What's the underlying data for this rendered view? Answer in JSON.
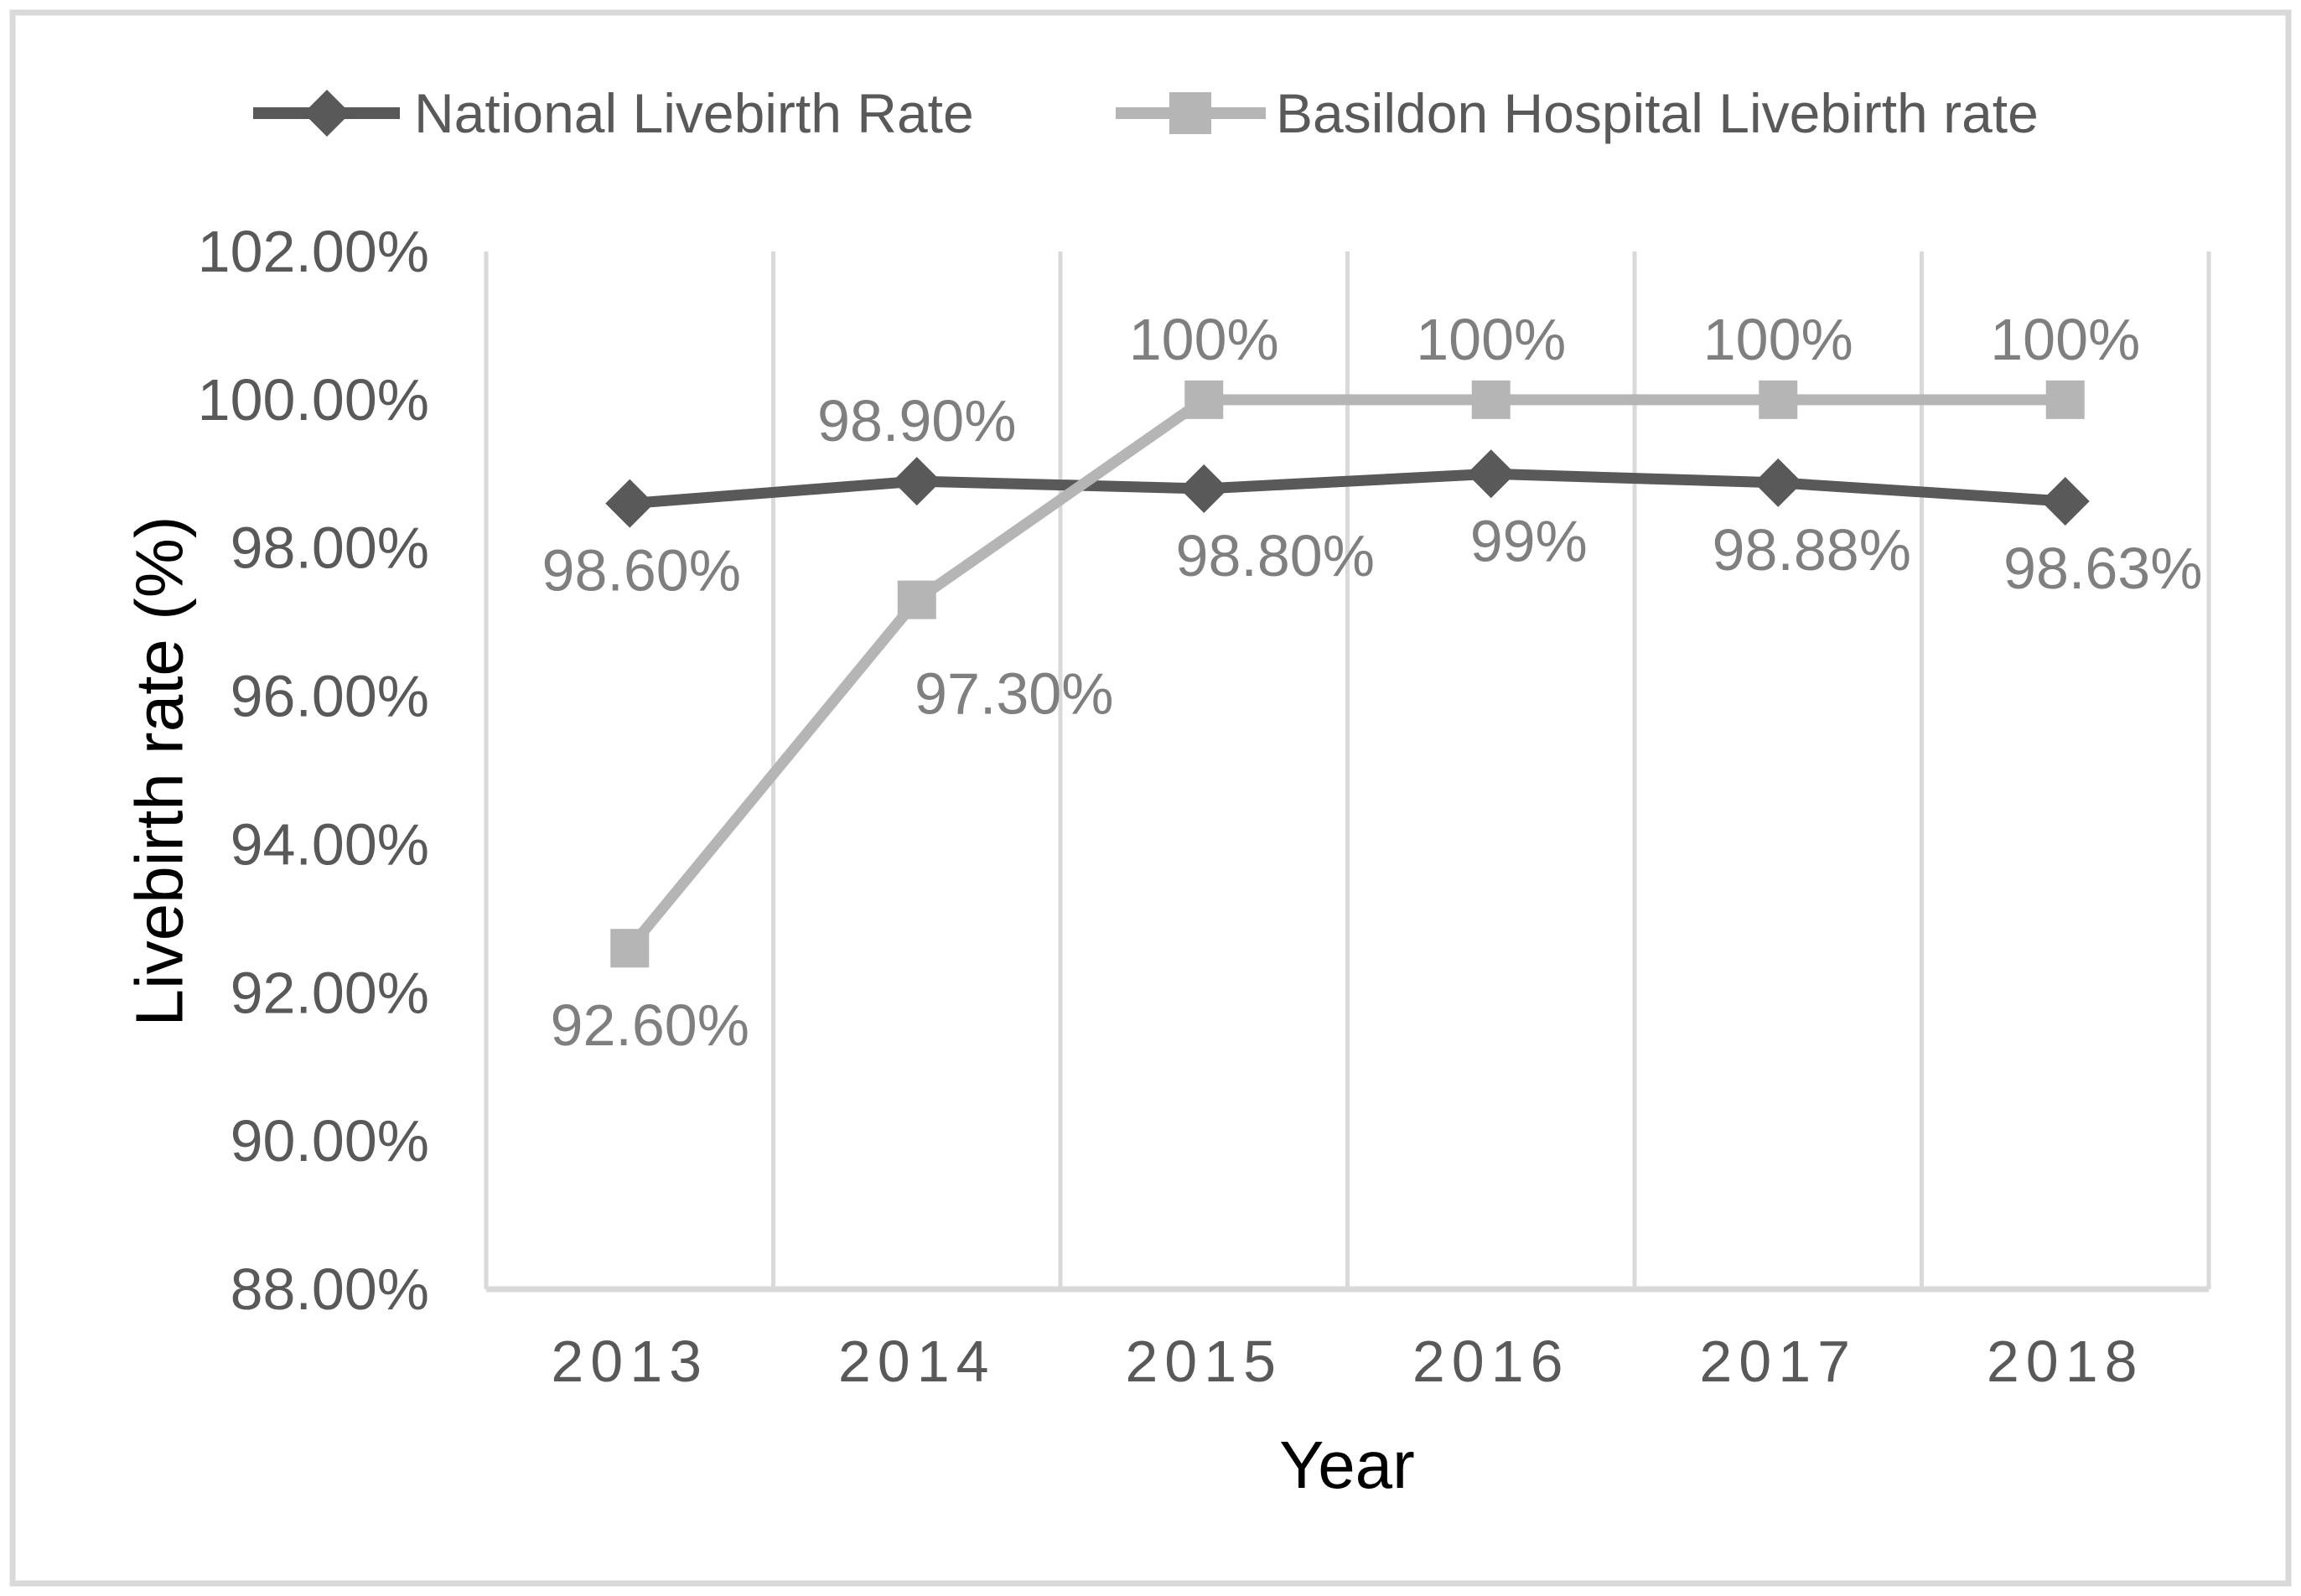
{
  "figure": {
    "y_axis_title": "Livebirth rate (%)",
    "x_axis_title": "Year"
  },
  "legend": {
    "position": "top",
    "items": [
      {
        "label": "National Livebirth Rate",
        "marker": "diamond",
        "color": "#595959"
      },
      {
        "label": "Basildon Hospital Livebirth rate",
        "marker": "square",
        "color": "#b5b5b5"
      }
    ]
  },
  "chart_data": {
    "type": "line",
    "title": "",
    "xlabel": "Year",
    "ylabel": "Livebirth rate (%)",
    "categories": [
      "2013",
      "2014",
      "2015",
      "2016",
      "2017",
      "2018"
    ],
    "series": [
      {
        "name": "National Livebirth Rate",
        "marker": "diamond",
        "color": "#595959",
        "values": [
          98.6,
          98.9,
          98.8,
          99.0,
          98.88,
          98.63
        ],
        "labels": [
          "98.60%",
          "98.90%",
          "98.80%",
          "99%",
          "98.88%",
          "98.63%"
        ],
        "label_sides": [
          "below",
          "above",
          "below",
          "below",
          "below",
          "below"
        ],
        "label_dx": [
          14,
          0,
          85,
          45,
          40,
          45
        ],
        "label_dy": [
          80,
          -72,
          80,
          80,
          80,
          80
        ]
      },
      {
        "name": "Basildon Hospital Livebirth rate",
        "marker": "square",
        "color": "#b5b5b5",
        "values": [
          92.6,
          97.3,
          100.0,
          100.0,
          100.0,
          100.0
        ],
        "labels": [
          "92.60%",
          "97.30%",
          "100%",
          "100%",
          "100%",
          "100%"
        ],
        "label_sides": [
          "below",
          "below",
          "above",
          "above",
          "above",
          "above"
        ],
        "label_dx": [
          24,
          116,
          0,
          0,
          0,
          0
        ],
        "label_dy": [
          92,
          112,
          -72,
          -72,
          -72,
          -72
        ]
      }
    ],
    "y_axis": {
      "min": 88,
      "max": 102,
      "step": 2,
      "tick_labels": [
        "102.00%",
        "100.00%",
        "98.00%",
        "96.00%",
        "94.00%",
        "92.00%",
        "90.00%",
        "88.00%"
      ]
    },
    "grid": "vertical-only",
    "legend_position": "top",
    "colors": {
      "axis_text": "#595959",
      "data_label": "#7f7f7f",
      "gridline": "#d9d9d9",
      "axis_line": "#d9d9d9",
      "figure_border": "#d9d9d9",
      "title_text": "#000000",
      "background": "#ffffff"
    }
  }
}
